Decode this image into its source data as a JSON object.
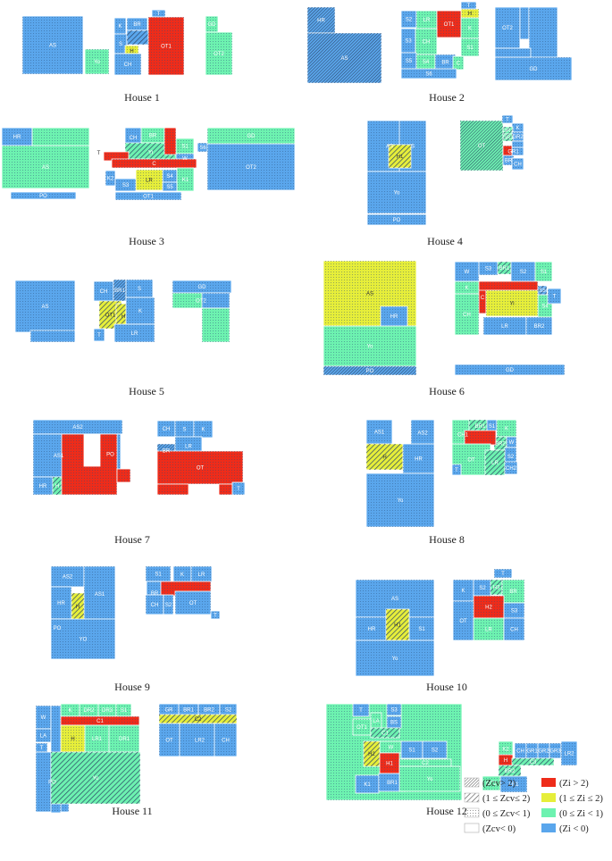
{
  "colors": {
    "red": "#ee2c1a",
    "yellow": "#e6ee3a",
    "green": "#6df2b0",
    "blue": "#5aa6ec",
    "hatch": "#2f4d72"
  },
  "captions": [
    "House 1",
    "House 2",
    "House 3",
    "House 4",
    "House 5",
    "House 6",
    "House 7",
    "House 8",
    "House 9",
    "House 10",
    "House 11",
    "House 12"
  ],
  "legend": [
    {
      "label": "(Zcv> 2)",
      "swatch": "hatch-dense"
    },
    {
      "label": "(Zi > 2)",
      "swatch": "red"
    },
    {
      "label": "(1 ≤ Zcv≤ 2)",
      "swatch": "hatch"
    },
    {
      "label": "(1 ≤ Zi ≤ 2)",
      "swatch": "yellow"
    },
    {
      "label": "(0 ≤ Zcv< 1)",
      "swatch": "dots"
    },
    {
      "label": "(0 ≤ Zi < 1)",
      "swatch": "green"
    },
    {
      "label": "(Zcv< 0)",
      "swatch": "empty"
    },
    {
      "label": "(Zi < 0)",
      "swatch": "blue"
    }
  ],
  "room_labels": {
    "h1": [
      "AS",
      "Yo",
      "K",
      "BR",
      "T",
      "S",
      "H",
      "CH",
      "OT1",
      "GD",
      "OT2"
    ],
    "h2": [
      "HR",
      "AS",
      "S2",
      "LR",
      "H",
      "T",
      "OT1",
      "K",
      "S3",
      "CH",
      "S1",
      "S5",
      "S4",
      "BR",
      "C",
      "S6",
      "OT2",
      "GD"
    ],
    "h3": [
      "HR",
      "AS",
      "PO",
      "T",
      "CH",
      "BR",
      "S1",
      "Yi",
      "W",
      "C",
      "K2",
      "S4",
      "LR",
      "K1",
      "S3",
      "S5",
      "OT1",
      "S6",
      "GD",
      "OT2"
    ],
    "h4": [
      "AS",
      "S",
      "H1",
      "Yo",
      "PO",
      "OT",
      "T",
      "K",
      "GR1",
      "GR2",
      "GR3",
      "GR1",
      "BR",
      "CH"
    ],
    "h5": [
      "AS",
      "CH",
      "BR1",
      "S",
      "OT1",
      "H",
      "K",
      "T",
      "LR",
      "GD",
      "OT2"
    ],
    "h6": [
      "AS",
      "HR",
      "Yo",
      "PO",
      "W",
      "S3",
      "BR1",
      "S2",
      "S1",
      "K",
      "C",
      "S5",
      "S4",
      "T",
      "CH",
      "Yi",
      "LR",
      "BR2",
      "GD"
    ],
    "h7": [
      "AS2",
      "AS1",
      "PO",
      "HR",
      "H",
      "Yo",
      "CH",
      "S",
      "K",
      "BR",
      "LR",
      "OT",
      "T"
    ],
    "h8": [
      "AS1",
      "AS2",
      "H",
      "HR",
      "Yo",
      "CH1",
      "BR1",
      "S1",
      "K",
      "BR2",
      "W",
      "OT",
      "S2",
      "LR",
      "T",
      "CH2"
    ],
    "h9": [
      "AS2",
      "AS1",
      "HR",
      "H",
      "PO",
      "YO",
      "S1",
      "K",
      "LR",
      "BR",
      "CH",
      "S2",
      "OT",
      "T"
    ],
    "h10": [
      "AS",
      "HR",
      "H1",
      "S1",
      "Yo",
      "T",
      "K",
      "S2",
      "H3",
      "BR",
      "H2",
      "S3",
      "OT",
      "LR",
      "CH"
    ],
    "h11": [
      "W",
      "LA",
      "T",
      "PO",
      "K",
      "DR2",
      "DR3",
      "S1",
      "C1",
      "H",
      "LR1",
      "DR1",
      "Yo",
      "GR",
      "BR1",
      "BR2",
      "S2",
      "C2",
      "OT",
      "LR2",
      "CH"
    ],
    "h12": [
      "T",
      "LA",
      "S3",
      "OT1",
      "BS",
      "C1",
      "W",
      "S1",
      "S2",
      "H2",
      "H1",
      "C2",
      "K1",
      "BR1",
      "Yo",
      "K2",
      "CH",
      "GR1",
      "GR2",
      "GR3",
      "LR2",
      "H",
      "C3",
      "BR2",
      "OT2",
      "LR1"
    ]
  }
}
